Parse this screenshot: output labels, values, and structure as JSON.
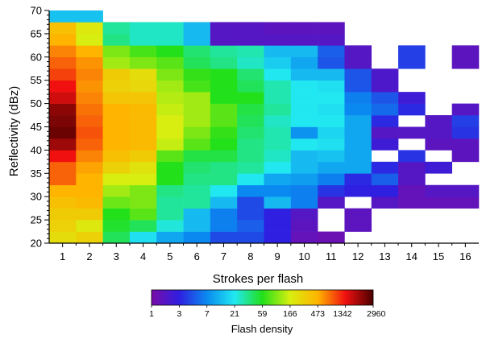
{
  "chart_data": {
    "type": "heatmap",
    "xlabel": "Strokes per flash",
    "ylabel": "Reflectivity (dBz)",
    "x_ticks": [
      1,
      2,
      3,
      4,
      5,
      6,
      7,
      8,
      9,
      10,
      11,
      12,
      13,
      14,
      15,
      16
    ],
    "y_ticks": [
      20,
      25,
      30,
      35,
      40,
      45,
      50,
      55,
      60,
      65,
      70
    ],
    "xlim": [
      0.5,
      16.5
    ],
    "ylim": [
      20,
      70
    ],
    "row_step_dbz": 2.5,
    "colorbar": {
      "title": "Flash density",
      "scale": "log",
      "tick_labels": [
        "1",
        "3",
        "7",
        "21",
        "59",
        "166",
        "473",
        "1342",
        "2960"
      ],
      "colors": [
        "#7a0ca8",
        "#2f1fe0",
        "#0a8af0",
        "#21e8f0",
        "#22e01a",
        "#d8ee10",
        "#ffb400",
        "#f01010",
        "#4a0000"
      ]
    },
    "rows": [
      {
        "dbz_from": 20.0,
        "levels": [
          5.3,
          5.5,
          3.7,
          2.9,
          2.3,
          2.0,
          1.4,
          1.4,
          1.0,
          0.3,
          0.2
        ]
      },
      {
        "dbz_from": 22.5,
        "levels": [
          5.5,
          5.1,
          3.9,
          3.7,
          3.1,
          2.5,
          1.9,
          1.6,
          1.0,
          0.4,
          null,
          0.4
        ]
      },
      {
        "dbz_from": 25.0,
        "levels": [
          5.6,
          5.6,
          4.0,
          4.3,
          3.4,
          2.5,
          1.9,
          1.4,
          1.0,
          0.5,
          null,
          0.4
        ]
      },
      {
        "dbz_from": 27.5,
        "levels": [
          5.8,
          5.9,
          4.4,
          4.5,
          3.4,
          3.4,
          2.5,
          1.4,
          2.5,
          1.9,
          0.5,
          null,
          0.5,
          0.3,
          0.3,
          0.3
        ]
      },
      {
        "dbz_from": 30.0,
        "levels": [
          6.0,
          6.0,
          4.7,
          4.5,
          3.5,
          3.4,
          3.0,
          2.0,
          2.0,
          1.9,
          1.2,
          1.0,
          1.0,
          0.3,
          0.5,
          0.5
        ]
      },
      {
        "dbz_from": 32.5,
        "levels": [
          6.5,
          6.0,
          5.0,
          5.0,
          4.0,
          3.5,
          3.5,
          3.0,
          2.3,
          2.2,
          1.9,
          1.1,
          1.6,
          0.5
        ]
      },
      {
        "dbz_from": 35.0,
        "levels": [
          6.5,
          6.1,
          5.5,
          5.2,
          4.0,
          3.6,
          3.5,
          3.4,
          3.0,
          2.5,
          2.3,
          2.3,
          1.1,
          0.5,
          0.8
        ]
      },
      {
        "dbz_from": 37.5,
        "levels": [
          7.0,
          6.3,
          5.8,
          5.6,
          4.3,
          3.8,
          3.8,
          3.5,
          3.2,
          2.5,
          2.6,
          2.3,
          null,
          1.2,
          null,
          0.4
        ]
      },
      {
        "dbz_from": 40.0,
        "levels": [
          7.5,
          6.5,
          6.0,
          5.9,
          4.9,
          4.3,
          4.0,
          3.5,
          3.3,
          3.0,
          2.9,
          2.3,
          0.8,
          null,
          0.4,
          0.4
        ]
      },
      {
        "dbz_from": 42.5,
        "levels": [
          7.8,
          6.6,
          6.0,
          5.9,
          5.0,
          4.5,
          4.1,
          3.6,
          3.3,
          2.1,
          2.8,
          2.3,
          0.5,
          0.5,
          0.5,
          1.2
        ]
      },
      {
        "dbz_from": 45.0,
        "levels": [
          7.7,
          6.5,
          6.0,
          5.9,
          5.0,
          4.7,
          4.3,
          3.7,
          3.2,
          3.0,
          3.0,
          2.3,
          1.1,
          null,
          0.5,
          1.3
        ]
      },
      {
        "dbz_from": 47.5,
        "levels": [
          7.6,
          6.4,
          6.0,
          5.9,
          4.9,
          4.7,
          4.3,
          3.8,
          3.4,
          3.0,
          2.9,
          2.0,
          1.7,
          1.1,
          null,
          0.5
        ]
      },
      {
        "dbz_from": 50.0,
        "levels": [
          7.2,
          6.3,
          5.7,
          5.7,
          4.8,
          4.7,
          4.0,
          4.0,
          3.3,
          3.0,
          3.0,
          1.9,
          1.5,
          0.8
        ]
      },
      {
        "dbz_from": 52.5,
        "levels": [
          7.0,
          6.2,
          5.5,
          5.4,
          4.7,
          4.2,
          4.0,
          3.7,
          3.3,
          3.0,
          2.9,
          1.5,
          0.6
        ]
      },
      {
        "dbz_from": 55.0,
        "levels": [
          6.7,
          6.3,
          5.6,
          5.3,
          4.5,
          4.1,
          4.0,
          3.6,
          3.0,
          2.5,
          2.5,
          1.5,
          0.6
        ]
      },
      {
        "dbz_from": 57.5,
        "levels": [
          6.5,
          6.2,
          4.7,
          4.5,
          4.3,
          3.7,
          3.5,
          3.2,
          2.7,
          2.3,
          1.5,
          0.5,
          null,
          1.3,
          null,
          0.4
        ]
      },
      {
        "dbz_from": 60.0,
        "levels": [
          6.3,
          6.0,
          4.5,
          4.2,
          4.0,
          3.6,
          3.4,
          3.3,
          2.5,
          2.5,
          1.6,
          0.5,
          null,
          1.3,
          null,
          0.4
        ]
      },
      {
        "dbz_from": 62.5,
        "levels": [
          6.0,
          5.0,
          3.5,
          3.2,
          3.2,
          2.5,
          0.5,
          0.5,
          0.5,
          0.5,
          0.5
        ]
      },
      {
        "dbz_from": 65.0,
        "levels": [
          5.8,
          5.1,
          3.4,
          3.2,
          3.2,
          2.5,
          0.5,
          0.5,
          0.4,
          0.4,
          0.4
        ]
      },
      {
        "dbz_from": 67.5,
        "levels": [
          2.6,
          2.6
        ]
      }
    ]
  }
}
